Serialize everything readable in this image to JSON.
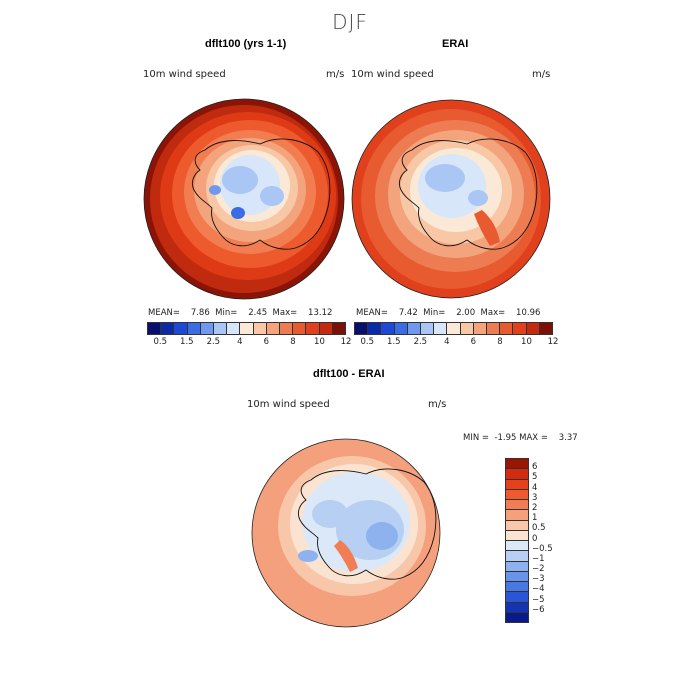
{
  "figure": {
    "season": "DJF"
  },
  "panels": [
    {
      "id": "model",
      "title": "dflt100 (yrs 1-1)",
      "variable": "10m wind speed",
      "units": "m/s",
      "stats": {
        "mean_label": "MEAN=",
        "mean": "7.86",
        "min_label": "Min=",
        "min": "2.45",
        "max_label": "Max=",
        "max": "13.12"
      }
    },
    {
      "id": "obs",
      "title": "ERAI",
      "variable": "10m wind speed",
      "units": "m/s",
      "stats": {
        "mean_label": "MEAN=",
        "mean": "7.42",
        "min_label": "Min=",
        "min": "2.00",
        "max_label": "Max=",
        "max": "10.96"
      }
    }
  ],
  "colorbar_top": {
    "ticks": [
      "0.5",
      "1.5",
      "2.5",
      "4",
      "6",
      "8",
      "10",
      "12"
    ],
    "colors": [
      "#08106b",
      "#0b2aa8",
      "#1e48d6",
      "#3a6ce6",
      "#6f98ee",
      "#a9c6f4",
      "#d7e6f8",
      "#fbe9d8",
      "#f8c7a6",
      "#f3a47c",
      "#ee7c52",
      "#e85a30",
      "#e0401c",
      "#c52a10",
      "#7c0f06"
    ]
  },
  "diff_panel": {
    "title": "dflt100 - ERAI",
    "variable": "10m wind speed",
    "units": "m/s",
    "stats": {
      "min_label": "MIN =",
      "min": "-1.95",
      "max_label": "MAX =",
      "max": "3.37"
    }
  },
  "colorbar_diff": {
    "ticks": [
      "6",
      "5",
      "4",
      "3",
      "2",
      "1",
      "0.5",
      "0",
      "−0.5",
      "−1",
      "−2",
      "−3",
      "−4",
      "−5",
      "−6"
    ],
    "colors": [
      "#9b1505",
      "#d42a0f",
      "#e8401b",
      "#ef5a2f",
      "#f27d55",
      "#f4a07d",
      "#f8c6a8",
      "#fbe3d2",
      "#dbe8f7",
      "#b6cff2",
      "#8db2ee",
      "#6a94ea",
      "#4778e4",
      "#2a56d6",
      "#1434b4",
      "#0a1a8a"
    ]
  }
}
